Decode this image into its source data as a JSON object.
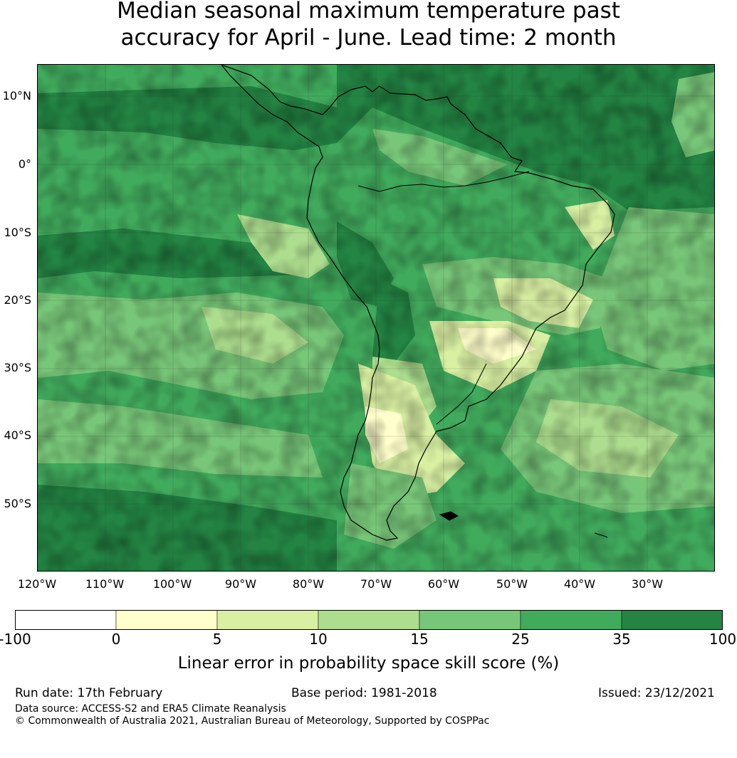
{
  "title": {
    "line1": "Median seasonal maximum temperature past",
    "line2": "accuracy for April - June. Lead time: 2 month"
  },
  "map": {
    "lat_labels": [
      "10°N",
      "0°",
      "10°S",
      "20°S",
      "30°S",
      "40°S",
      "50°S"
    ],
    "lon_labels": [
      "120°W",
      "110°W",
      "100°W",
      "90°W",
      "80°W",
      "70°W",
      "60°W",
      "50°W",
      "40°W",
      "30°W"
    ],
    "extent": {
      "lon": [
        -120,
        -20
      ],
      "lat": [
        -60,
        15
      ]
    },
    "region": "South America"
  },
  "legend": {
    "label": "Linear error in probability space skill score (%)",
    "ticks": [
      "-100",
      "0",
      "5",
      "10",
      "15",
      "25",
      "35",
      "100"
    ],
    "bins": [
      {
        "range": "-100 to 0",
        "color": "#ffffff"
      },
      {
        "range": "0 to 5",
        "color": "#ffffcc"
      },
      {
        "range": "5 to 10",
        "color": "#d9f0a3"
      },
      {
        "range": "10 to 15",
        "color": "#addd8e"
      },
      {
        "range": "15 to 25",
        "color": "#78c679"
      },
      {
        "range": "25 to 35",
        "color": "#41ab5d"
      },
      {
        "range": "35 to 100",
        "color": "#238443"
      }
    ]
  },
  "footer": {
    "run_date": "Run date: 17th February",
    "base_period": "Base period: 1981-2018",
    "issued": "Issued: 23/12/2021",
    "data_source": "Data source: ACCESS-S2 and ERA5 Climate Reanalysis",
    "copyright": "© Commonwealth of Australia 2021, Australian Bureau of Meteorology, Supported by COSPPac"
  }
}
